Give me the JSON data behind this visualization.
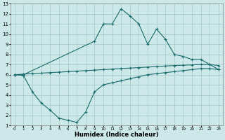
{
  "xlabel": "Humidex (Indice chaleur)",
  "bg_color": "#cce8e8",
  "grid_color": "#aacccc",
  "line_color": "#1a6b6b",
  "xlim": [
    -0.5,
    23.5
  ],
  "ylim": [
    1,
    13
  ],
  "xticks": [
    0,
    1,
    2,
    3,
    4,
    5,
    6,
    7,
    8,
    9,
    10,
    11,
    12,
    13,
    14,
    15,
    16,
    17,
    18,
    19,
    20,
    21,
    22,
    23
  ],
  "yticks": [
    1,
    2,
    3,
    4,
    5,
    6,
    7,
    8,
    9,
    10,
    11,
    12,
    13
  ],
  "line1_x": [
    0,
    1,
    9,
    10,
    11,
    12,
    13,
    14,
    15,
    16,
    17,
    18,
    19,
    20,
    21,
    22,
    23
  ],
  "line1_y": [
    6.0,
    6.0,
    9.3,
    11.0,
    11.0,
    12.5,
    11.8,
    11.0,
    9.0,
    10.5,
    9.5,
    8.0,
    7.8,
    7.5,
    7.5,
    7.0,
    6.5
  ],
  "line2_x": [
    0,
    1,
    2,
    3,
    4,
    5,
    6,
    7,
    8,
    9,
    10,
    11,
    12,
    13,
    14,
    15,
    16,
    17,
    18,
    19,
    20,
    21,
    22,
    23
  ],
  "line2_y": [
    6.0,
    6.05,
    6.1,
    6.15,
    6.2,
    6.25,
    6.3,
    6.35,
    6.4,
    6.45,
    6.5,
    6.55,
    6.6,
    6.65,
    6.7,
    6.75,
    6.8,
    6.85,
    6.9,
    6.93,
    6.97,
    7.0,
    7.0,
    6.9
  ],
  "line3_x": [
    0,
    1,
    2,
    3,
    4,
    5,
    6,
    7,
    8,
    9,
    10,
    11,
    12,
    13,
    14,
    15,
    16,
    17,
    18,
    19,
    20,
    21,
    22,
    23
  ],
  "line3_y": [
    6.0,
    5.9,
    4.3,
    3.2,
    2.5,
    1.7,
    1.5,
    1.3,
    2.3,
    4.3,
    5.0,
    5.2,
    5.4,
    5.6,
    5.8,
    6.0,
    6.1,
    6.2,
    6.3,
    6.4,
    6.5,
    6.6,
    6.6,
    6.5
  ]
}
